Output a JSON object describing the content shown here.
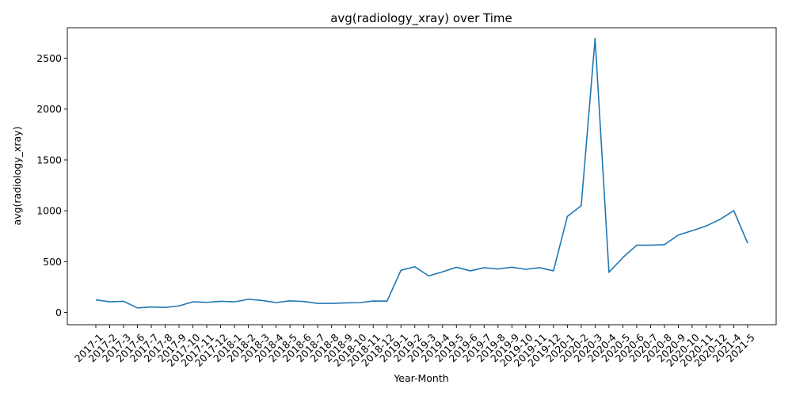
{
  "chart_data": {
    "type": "line",
    "title": "avg(radiology_xray) over Time",
    "xlabel": "Year-Month",
    "ylabel": "avg(radiology_xray)",
    "ylim": [
      -120,
      2800
    ],
    "yticks": [
      0,
      500,
      1000,
      1500,
      2000,
      2500
    ],
    "grid": false,
    "line_color": "#1f77b4",
    "categories": [
      "2017-1",
      "2017-2",
      "2017-3",
      "2017-6",
      "2017-7",
      "2017-8",
      "2017-9",
      "2017-10",
      "2017-11",
      "2017-12",
      "2018-1",
      "2018-2",
      "2018-3",
      "2018-4",
      "2018-5",
      "2018-6",
      "2018-7",
      "2018-8",
      "2018-9",
      "2018-10",
      "2018-11",
      "2018-12",
      "2019-1",
      "2019-2",
      "2019-3",
      "2019-4",
      "2019-5",
      "2019-6",
      "2019-7",
      "2019-8",
      "2019-9",
      "2019-10",
      "2019-11",
      "2019-12",
      "2020-1",
      "2020-2",
      "2020-3",
      "2020-4",
      "2020-5",
      "2020-6",
      "2020-7",
      "2020-8",
      "2020-9",
      "2020-10",
      "2020-11",
      "2020-12",
      "2021-4",
      "2021-5"
    ],
    "values": [
      125,
      105,
      110,
      45,
      55,
      50,
      65,
      105,
      100,
      110,
      105,
      130,
      118,
      98,
      115,
      108,
      90,
      90,
      95,
      97,
      113,
      112,
      415,
      450,
      360,
      400,
      445,
      410,
      440,
      428,
      445,
      425,
      440,
      410,
      945,
      1050,
      2695,
      395,
      540,
      662,
      662,
      667,
      762,
      805,
      850,
      915,
      1002,
      682
    ]
  }
}
